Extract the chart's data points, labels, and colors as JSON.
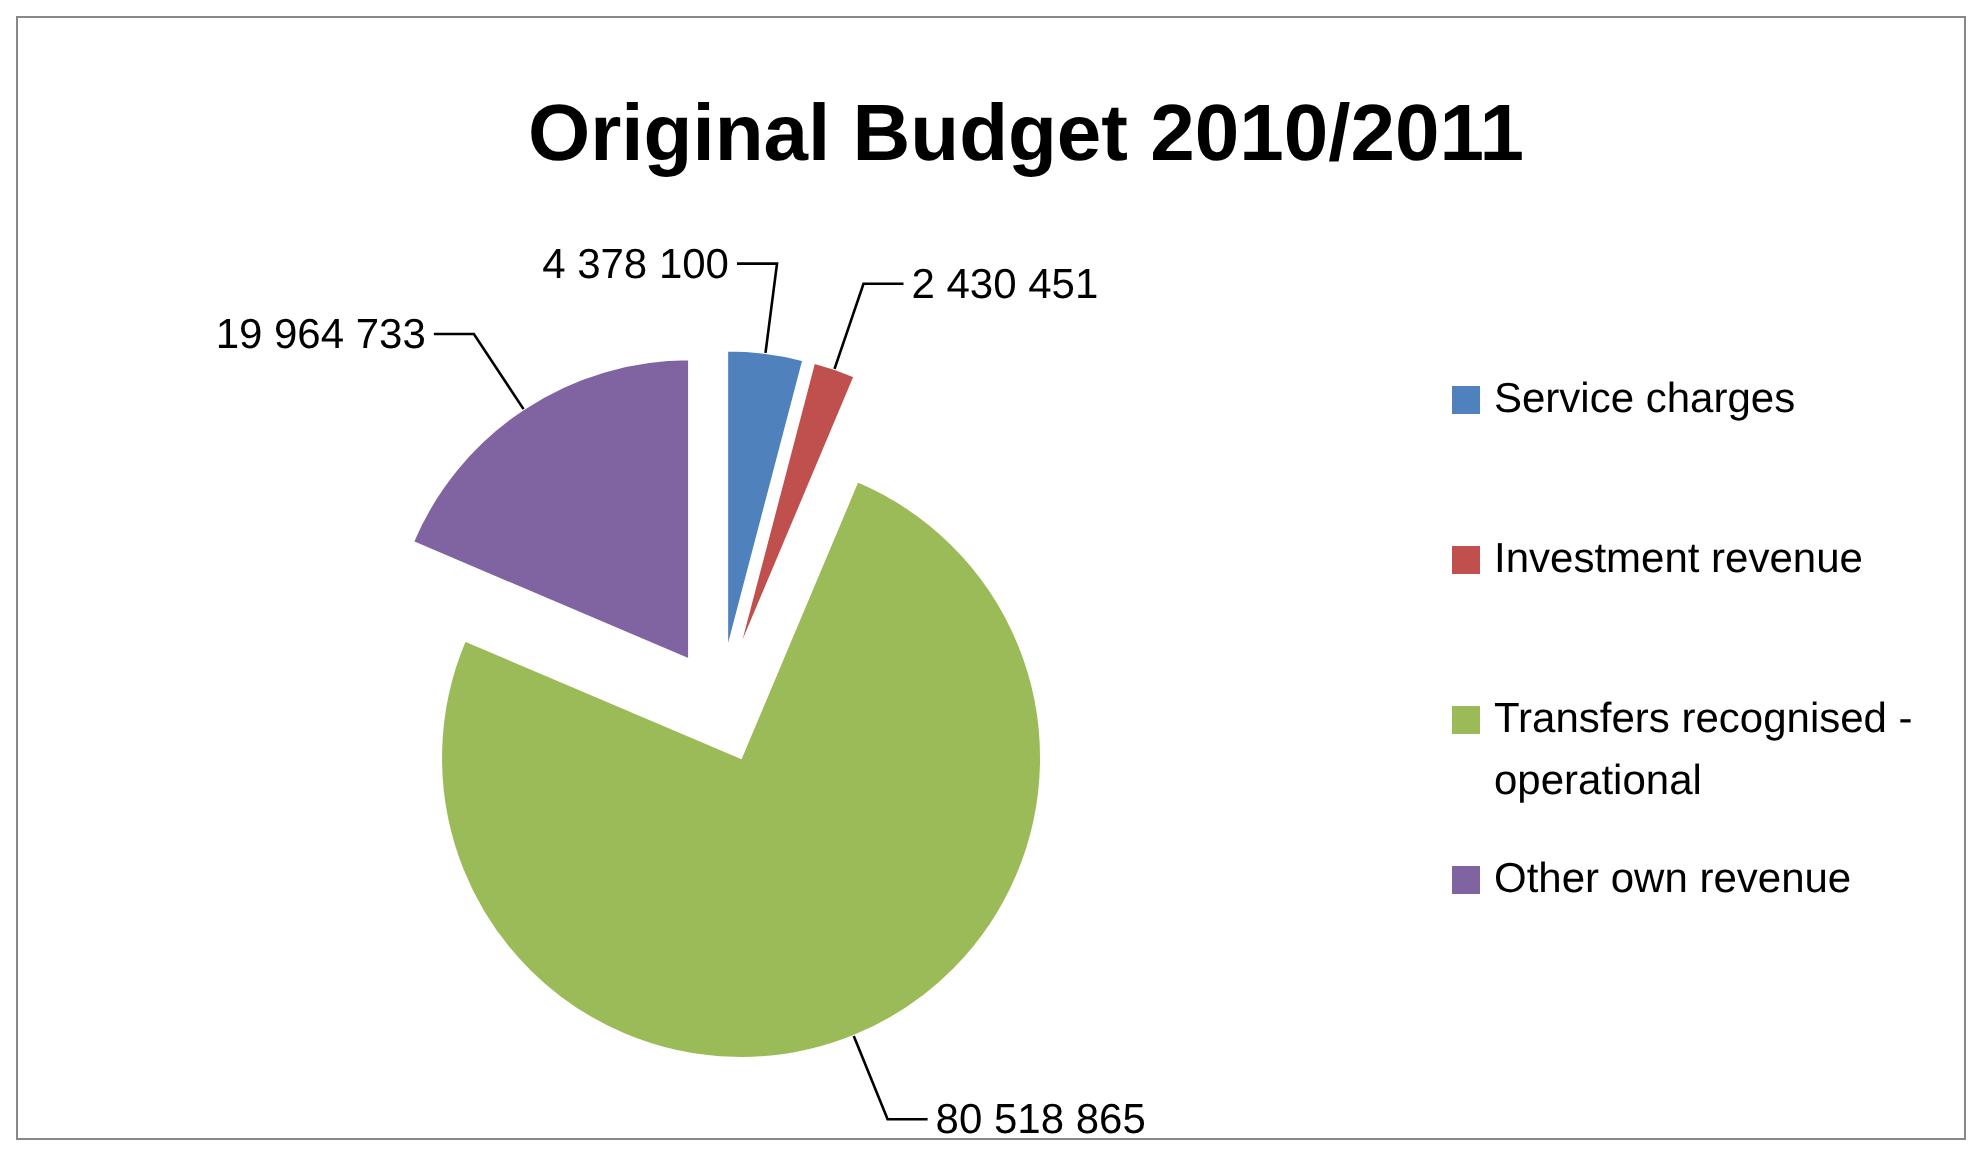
{
  "chart_data": {
    "type": "pie",
    "title": "Original Budget 2010/2011",
    "categories": [
      "Service charges",
      "Investment revenue",
      "Transfers recognised - operational",
      "Other own revenue"
    ],
    "values": [
      4378100,
      2430451,
      80518865,
      19964733
    ],
    "value_labels": [
      "4 378 100",
      "2 430 451",
      "80 518 865",
      "19 964 733"
    ],
    "colors": [
      "#4f81bd",
      "#c0504d",
      "#9bbb59",
      "#8064a2"
    ],
    "legend": "right"
  }
}
